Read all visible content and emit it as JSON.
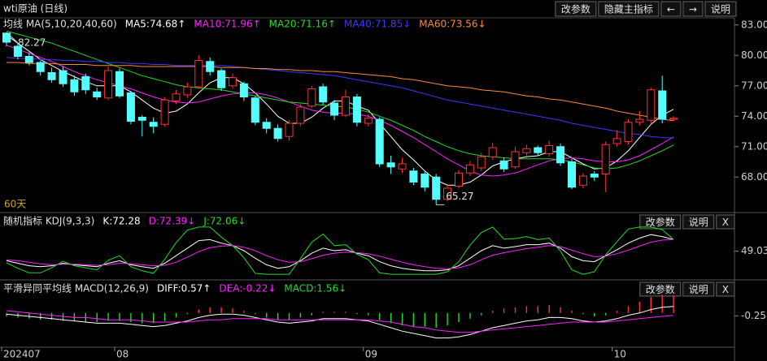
{
  "header": {
    "title": "wti原油 (日线)",
    "buttons": [
      "改参数",
      "隐藏主指标",
      "←",
      "→",
      "说明"
    ]
  },
  "chart_data": [
    {
      "type": "candlestick",
      "title": "均线 MA(5,10,20,40,60)",
      "period_label": "60天",
      "annotations": [
        "82.27",
        "65.27"
      ],
      "up_color": "#ff3232",
      "down_color": "#54ffff",
      "grid": false,
      "categories": [
        "202407",
        null,
        null,
        null,
        null,
        null,
        null,
        null,
        null,
        null,
        "08",
        null,
        null,
        null,
        null,
        null,
        null,
        null,
        null,
        null,
        null,
        null,
        null,
        null,
        null,
        null,
        null,
        null,
        null,
        null,
        null,
        null,
        "09",
        null,
        null,
        null,
        null,
        null,
        null,
        null,
        null,
        null,
        null,
        null,
        null,
        null,
        null,
        null,
        null,
        null,
        null,
        null,
        null,
        null,
        "10",
        null,
        null,
        null,
        null,
        null
      ],
      "open": [
        82.2,
        80.9,
        79.9,
        79.3,
        78.3,
        78.5,
        77.6,
        77.9,
        76.4,
        75.8,
        78.4,
        76.3,
        73.9,
        73.4,
        73.2,
        75.5,
        76.1,
        76.9,
        79.4,
        78.5,
        77.0,
        77.2,
        75.8,
        73.4,
        72.8,
        72.0,
        73.3,
        75.0,
        76.9,
        75.3,
        74.1,
        75.9,
        73.3,
        73.7,
        69.4,
        68.8,
        68.6,
        68.3,
        68.0,
        65.8,
        67.1,
        68.4,
        68.9,
        70.0,
        69.6,
        69.0,
        70.4,
        70.9,
        70.3,
        71.0,
        69.5,
        67.2,
        68.3,
        68.3,
        71.3,
        71.5,
        73.4,
        73.6,
        76.5,
        73.7
      ],
      "high": [
        82.27,
        81.2,
        80.3,
        79.5,
        78.8,
        78.9,
        78.0,
        78.2,
        76.8,
        78.9,
        78.7,
        76.5,
        74.1,
        73.9,
        75.9,
        76.6,
        77.3,
        80.0,
        79.8,
        78.7,
        78.2,
        77.4,
        76.0,
        73.8,
        73.2,
        73.6,
        75.2,
        77.0,
        77.2,
        75.6,
        76.6,
        76.2,
        74.2,
        73.9,
        70.1,
        69.9,
        68.9,
        68.6,
        68.3,
        67.3,
        68.7,
        69.6,
        70.4,
        71.4,
        69.9,
        71.0,
        71.2,
        71.1,
        71.6,
        71.3,
        69.8,
        68.4,
        68.6,
        71.5,
        72.6,
        73.7,
        74.5,
        76.8,
        78.0,
        74.0
      ],
      "low": [
        80.9,
        79.6,
        79.0,
        78.0,
        77.3,
        76.9,
        76.0,
        76.2,
        75.6,
        75.6,
        75.8,
        73.2,
        72.0,
        72.3,
        73.0,
        75.2,
        75.8,
        76.7,
        78.0,
        76.5,
        76.7,
        75.5,
        73.1,
        72.3,
        71.5,
        71.6,
        73.0,
        74.8,
        75.1,
        73.6,
        73.9,
        73.0,
        73.0,
        69.0,
        68.3,
        68.4,
        67.2,
        66.6,
        65.27,
        65.6,
        66.9,
        68.1,
        68.6,
        69.7,
        68.5,
        68.8,
        70.1,
        70.1,
        70.0,
        69.1,
        66.8,
        66.9,
        67.6,
        66.5,
        71.0,
        71.2,
        73.1,
        73.3,
        73.3,
        73.5
      ],
      "close": [
        81.3,
        79.9,
        79.3,
        78.4,
        77.6,
        77.2,
        76.4,
        76.6,
        75.9,
        78.5,
        76.0,
        73.5,
        73.6,
        73.0,
        75.6,
        76.2,
        76.9,
        79.5,
        78.4,
        76.8,
        77.8,
        75.9,
        73.4,
        72.8,
        71.8,
        73.3,
        74.9,
        76.7,
        75.4,
        74.1,
        75.9,
        73.4,
        73.8,
        69.3,
        69.0,
        69.3,
        67.5,
        67.0,
        65.8,
        66.9,
        68.4,
        69.2,
        70.0,
        70.9,
        68.8,
        70.5,
        70.8,
        70.4,
        71.1,
        69.4,
        67.0,
        68.1,
        68.0,
        71.2,
        71.8,
        73.4,
        73.7,
        76.6,
        73.7,
        73.8
      ],
      "series": [
        {
          "name": "MA5:74.68↑",
          "color": "#ffffff",
          "values": [
            82.0,
            81.2,
            80.4,
            79.6,
            79.0,
            78.4,
            77.9,
            77.4,
            77.0,
            77.0,
            77.0,
            76.4,
            75.6,
            74.8,
            74.3,
            74.5,
            75.2,
            76.3,
            77.3,
            77.8,
            77.8,
            77.2,
            76.3,
            75.2,
            74.0,
            73.3,
            73.3,
            73.9,
            74.8,
            75.5,
            75.5,
            75.0,
            74.6,
            73.3,
            72.0,
            70.7,
            69.7,
            68.6,
            67.7,
            67.2,
            67.2,
            67.5,
            68.2,
            69.1,
            69.5,
            69.8,
            70.0,
            70.1,
            70.5,
            70.5,
            69.9,
            69.3,
            68.8,
            68.9,
            69.6,
            70.6,
            71.9,
            73.2,
            74.1,
            74.68
          ]
        },
        {
          "name": "MA10:71.96↑",
          "color": "#ff22ff",
          "values": [
            81.0,
            80.6,
            80.2,
            79.8,
            79.4,
            78.9,
            78.4,
            78.0,
            77.6,
            77.3,
            77.0,
            76.7,
            76.3,
            75.9,
            75.6,
            75.4,
            75.3,
            75.4,
            75.7,
            76.0,
            76.2,
            76.3,
            76.3,
            76.1,
            75.8,
            75.4,
            75.0,
            74.6,
            74.4,
            74.3,
            74.3,
            74.2,
            74.0,
            73.6,
            73.1,
            72.5,
            71.9,
            71.2,
            70.5,
            69.8,
            69.2,
            68.6,
            68.2,
            68.1,
            68.2,
            68.4,
            68.8,
            69.2,
            69.6,
            69.8,
            69.9,
            69.8,
            69.6,
            69.5,
            69.5,
            69.7,
            70.1,
            70.7,
            71.3,
            71.96
          ]
        },
        {
          "name": "MA20:71.16↑",
          "color": "#22dd22",
          "values": [
            82.4,
            82.1,
            81.8,
            81.5,
            81.2,
            80.8,
            80.4,
            80.0,
            79.6,
            79.2,
            78.8,
            78.4,
            78.0,
            77.7,
            77.4,
            77.1,
            76.9,
            76.8,
            76.7,
            76.6,
            76.4,
            76.2,
            76.0,
            75.8,
            75.6,
            75.4,
            75.3,
            75.2,
            75.1,
            75.0,
            74.9,
            74.7,
            74.4,
            74.0,
            73.6,
            73.1,
            72.6,
            72.0,
            71.5,
            71.0,
            70.6,
            70.3,
            70.1,
            70.0,
            69.9,
            69.8,
            69.8,
            69.8,
            69.8,
            69.7,
            69.5,
            69.2,
            68.9,
            68.8,
            68.9,
            69.2,
            69.6,
            70.1,
            70.6,
            71.16
          ]
        },
        {
          "name": "MA40:71.85↓",
          "color": "#3a3aff",
          "values": [
            79.8,
            79.7,
            79.7,
            79.6,
            79.6,
            79.5,
            79.5,
            79.4,
            79.4,
            79.3,
            79.3,
            79.2,
            79.2,
            79.1,
            79.1,
            79.0,
            79.0,
            79.0,
            79.0,
            79.0,
            78.9,
            78.8,
            78.7,
            78.6,
            78.5,
            78.4,
            78.3,
            78.2,
            78.1,
            78.0,
            77.8,
            77.6,
            77.4,
            77.2,
            77.0,
            76.8,
            76.5,
            76.2,
            75.9,
            75.6,
            75.4,
            75.2,
            75.0,
            74.8,
            74.6,
            74.4,
            74.2,
            74.0,
            73.8,
            73.6,
            73.3,
            73.1,
            72.9,
            72.7,
            72.5,
            72.3,
            72.2,
            72.0,
            71.9,
            71.85
          ]
        },
        {
          "name": "MA60:73.56↓",
          "color": "#ff8a3a",
          "values": [
            79.3,
            79.3,
            79.2,
            79.2,
            79.2,
            79.1,
            79.1,
            79.1,
            79.0,
            79.0,
            79.0,
            79.0,
            78.9,
            78.9,
            78.9,
            78.9,
            78.9,
            78.9,
            78.9,
            78.8,
            78.8,
            78.8,
            78.7,
            78.7,
            78.6,
            78.6,
            78.5,
            78.5,
            78.4,
            78.4,
            78.3,
            78.2,
            78.1,
            78.0,
            77.9,
            77.7,
            77.6,
            77.4,
            77.2,
            77.0,
            76.9,
            76.8,
            76.6,
            76.5,
            76.4,
            76.2,
            76.0,
            75.9,
            75.7,
            75.6,
            75.4,
            75.2,
            75.0,
            74.8,
            74.5,
            74.3,
            74.1,
            73.9,
            73.7,
            73.56
          ]
        }
      ],
      "ylim": [
        64.5,
        83.7
      ],
      "yticks": [
        {
          "value": 83,
          "label": "83.00"
        },
        {
          "value": 80,
          "label": "80.00"
        },
        {
          "value": 77,
          "label": "77.00"
        },
        {
          "value": 74,
          "label": "74.00"
        },
        {
          "value": 71,
          "label": "71.00"
        },
        {
          "value": 68,
          "label": "68.00"
        }
      ]
    },
    {
      "type": "line",
      "title": "随机指标 KDJ(9,3,3)",
      "buttons": [
        "改参数",
        "说明",
        "X"
      ],
      "series": [
        {
          "name": "K:72.28",
          "color": "#ffffff",
          "values": [
            30,
            25,
            20,
            18,
            20,
            25,
            22,
            20,
            18,
            25,
            30,
            22,
            18,
            15,
            25,
            40,
            55,
            70,
            72,
            65,
            60,
            50,
            35,
            22,
            15,
            18,
            30,
            45,
            55,
            50,
            52,
            45,
            40,
            28,
            20,
            15,
            12,
            10,
            10,
            12,
            20,
            35,
            50,
            60,
            55,
            58,
            62,
            62,
            65,
            55,
            38,
            30,
            28,
            40,
            52,
            65,
            75,
            82,
            78,
            72.28
          ]
        },
        {
          "name": "D:72.39↓",
          "color": "#ff22ff",
          "values": [
            32,
            30,
            27,
            24,
            22,
            23,
            23,
            22,
            21,
            22,
            25,
            24,
            22,
            20,
            21,
            27,
            37,
            48,
            56,
            59,
            60,
            57,
            50,
            40,
            32,
            27,
            28,
            34,
            41,
            45,
            47,
            46,
            44,
            39,
            33,
            27,
            22,
            18,
            15,
            14,
            16,
            22,
            32,
            41,
            46,
            50,
            54,
            57,
            60,
            58,
            51,
            44,
            38,
            39,
            44,
            51,
            59,
            67,
            71,
            72.39
          ]
        },
        {
          "name": "J:72.06↓",
          "color": "#22dd22",
          "values": [
            26,
            15,
            6,
            6,
            16,
            29,
            20,
            16,
            12,
            31,
            40,
            18,
            10,
            5,
            33,
            66,
            91,
            97,
            97,
            77,
            60,
            36,
            5,
            3,
            3,
            3,
            34,
            67,
            83,
            60,
            62,
            43,
            32,
            6,
            3,
            3,
            3,
            3,
            3,
            8,
            28,
            61,
            86,
            97,
            73,
            74,
            78,
            72,
            75,
            49,
            12,
            3,
            8,
            42,
            68,
            93,
            97,
            97,
            92,
            72.06
          ]
        }
      ],
      "ylim": [
        0,
        100
      ],
      "yticks": [
        49.03
      ]
    },
    {
      "type": "macd",
      "title": "平滑异同平均线 MACD(12,26,9)",
      "buttons": [
        "改参数",
        "说明",
        "X"
      ],
      "up_color": "#ff3232",
      "down_color": "#22dd22",
      "series": [
        {
          "name": "DIFF:0.57↑",
          "color": "#ffffff",
          "values": [
            -0.1,
            -0.2,
            -0.3,
            -0.4,
            -0.5,
            -0.6,
            -0.7,
            -0.8,
            -0.9,
            -0.9,
            -0.9,
            -1.0,
            -1.1,
            -1.2,
            -1.1,
            -0.9,
            -0.7,
            -0.4,
            -0.2,
            -0.1,
            -0.1,
            -0.2,
            -0.4,
            -0.6,
            -0.8,
            -0.9,
            -0.8,
            -0.7,
            -0.5,
            -0.5,
            -0.5,
            -0.6,
            -0.7,
            -1.0,
            -1.3,
            -1.6,
            -1.8,
            -2.0,
            -2.2,
            -2.2,
            -2.1,
            -1.9,
            -1.6,
            -1.3,
            -1.1,
            -0.9,
            -0.7,
            -0.6,
            -0.4,
            -0.4,
            -0.5,
            -0.7,
            -0.8,
            -0.7,
            -0.5,
            -0.2,
            0.0,
            0.3,
            0.5,
            0.57
          ]
        },
        {
          "name": "DEA:-0.22↓",
          "color": "#ff22ff",
          "values": [
            0.2,
            0.1,
            0.0,
            -0.1,
            -0.2,
            -0.3,
            -0.4,
            -0.4,
            -0.5,
            -0.6,
            -0.6,
            -0.6,
            -0.7,
            -0.8,
            -0.8,
            -0.8,
            -0.8,
            -0.7,
            -0.6,
            -0.6,
            -0.5,
            -0.5,
            -0.5,
            -0.5,
            -0.6,
            -0.6,
            -0.6,
            -0.6,
            -0.6,
            -0.6,
            -0.6,
            -0.6,
            -0.6,
            -0.7,
            -0.8,
            -1.0,
            -1.2,
            -1.3,
            -1.5,
            -1.6,
            -1.7,
            -1.7,
            -1.6,
            -1.5,
            -1.4,
            -1.3,
            -1.2,
            -1.1,
            -1.0,
            -0.9,
            -0.8,
            -0.8,
            -0.8,
            -0.8,
            -0.7,
            -0.6,
            -0.5,
            -0.4,
            -0.3,
            -0.22
          ]
        },
        {
          "name": "MACD:1.56↓",
          "color": "#22dd22",
          "kind": "bar",
          "values": [
            -0.3,
            -0.4,
            -0.5,
            -0.6,
            -0.6,
            -0.7,
            -0.7,
            -0.8,
            -0.8,
            -0.7,
            -0.7,
            -0.8,
            -0.9,
            -0.9,
            -0.7,
            -0.4,
            -0.1,
            0.3,
            0.5,
            0.5,
            0.4,
            0.2,
            -0.1,
            -0.4,
            -0.6,
            -0.6,
            -0.4,
            -0.2,
            0.1,
            0.1,
            0.1,
            -0.1,
            -0.2,
            -0.6,
            -0.9,
            -1.1,
            -1.2,
            -1.2,
            -1.3,
            -1.1,
            -0.8,
            -0.5,
            -0.2,
            0.2,
            0.4,
            0.5,
            0.6,
            0.6,
            0.7,
            0.5,
            0.2,
            -0.1,
            -0.3,
            -0.2,
            0.2,
            0.6,
            1.0,
            1.4,
            1.6,
            1.56
          ]
        }
      ],
      "ylim": [
        -2.8,
        2.2
      ],
      "yticks": [
        -0.25
      ]
    }
  ]
}
